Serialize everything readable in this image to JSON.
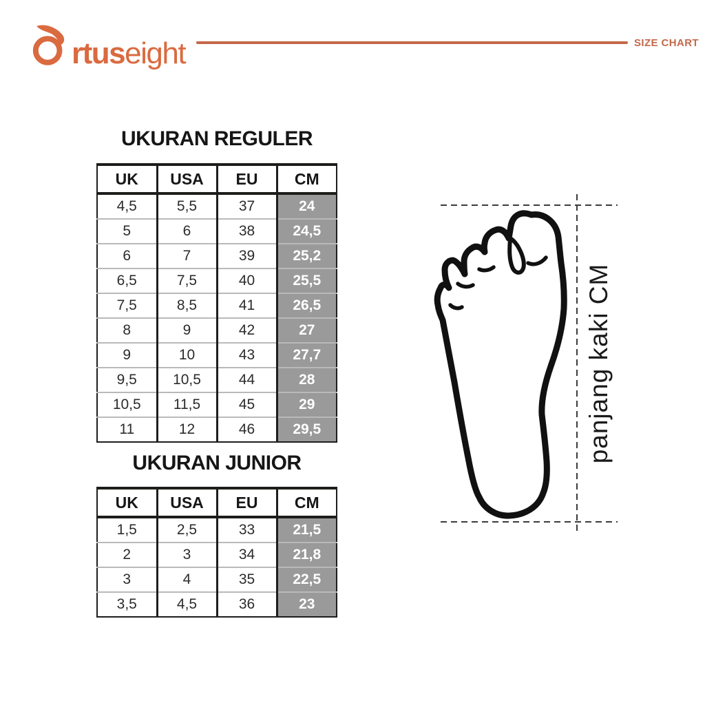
{
  "colors": {
    "accent_logo": "#DA6A3F",
    "accent_rule": "#C4684A",
    "cm_gray": "#9A9A9A",
    "ink": "#1d1d1b"
  },
  "header": {
    "brand_bold": "rtus",
    "brand_light": "eight",
    "tagline": "SIZE CHART"
  },
  "tables": [
    {
      "title": "UKURAN REGULER",
      "columns": [
        "UK",
        "USA",
        "EU",
        "CM"
      ],
      "rows": [
        [
          "4,5",
          "5,5",
          "37",
          "24"
        ],
        [
          "5",
          "6",
          "38",
          "24,5"
        ],
        [
          "6",
          "7",
          "39",
          "25,2"
        ],
        [
          "6,5",
          "7,5",
          "40",
          "25,5"
        ],
        [
          "7,5",
          "8,5",
          "41",
          "26,5"
        ],
        [
          "8",
          "9",
          "42",
          "27"
        ],
        [
          "9",
          "10",
          "43",
          "27,7"
        ],
        [
          "9,5",
          "10,5",
          "44",
          "28"
        ],
        [
          "10,5",
          "11,5",
          "45",
          "29"
        ],
        [
          "11",
          "12",
          "46",
          "29,5"
        ]
      ]
    },
    {
      "title": "UKURAN JUNIOR",
      "columns": [
        "UK",
        "USA",
        "EU",
        "CM"
      ],
      "rows": [
        [
          "1,5",
          "2,5",
          "33",
          "21,5"
        ],
        [
          "2",
          "3",
          "34",
          "21,8"
        ],
        [
          "3",
          "4",
          "35",
          "22,5"
        ],
        [
          "3,5",
          "4,5",
          "36",
          "23"
        ]
      ]
    }
  ],
  "figure": {
    "label": "panjang kaki CM"
  }
}
